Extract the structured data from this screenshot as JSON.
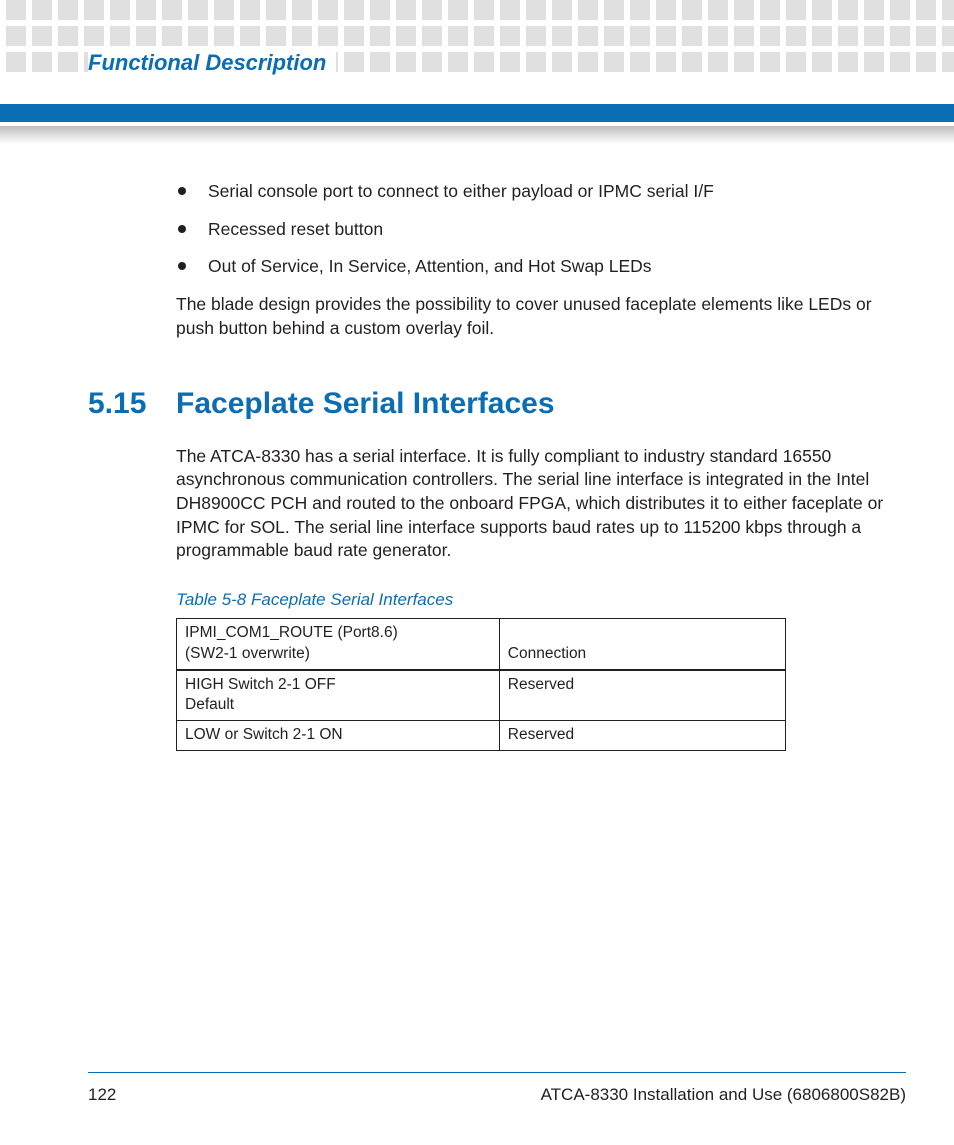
{
  "colors": {
    "brand_blue": "#0a6eb4",
    "dot_grey": "#e0e0e0",
    "text": "#231f20",
    "grey_bar_top": "#bdbdbd",
    "page_bg": "#ffffff"
  },
  "header": {
    "running_title": "Functional Description"
  },
  "bullets": [
    "Serial console port to connect to either payload or IPMC serial I/F",
    "Recessed reset button",
    "Out of Service, In Service, Attention, and Hot Swap LEDs"
  ],
  "paragraph_after_bullets": "The blade design provides the possibility to cover unused faceplate elements like LEDs or push button behind a custom overlay foil.",
  "section": {
    "number": "5.15",
    "title": "Faceplate Serial Interfaces",
    "body": "The ATCA-8330 has a serial interface. It is fully compliant to industry standard 16550 asynchronous communication controllers. The serial line interface is integrated in the Intel DH8900CC PCH and routed to the onboard FPGA, which distributes it to either faceplate or IPMC for SOL. The serial line interface supports baud rates up to 115200 kbps through a programmable baud rate generator."
  },
  "table": {
    "caption": "Table 5-8 Faceplate Serial Interfaces",
    "column_widths_pct": [
      53,
      47
    ],
    "border_color": "#231f20",
    "header_row": {
      "c0_line1": "IPMI_COM1_ROUTE (Port8.6)",
      "c0_line2": " (SW2-1 overwrite)",
      "c1": "Connection"
    },
    "rows": [
      {
        "c0_line1": "HIGH Switch 2-1 OFF",
        "c0_line2": "Default",
        "c1": "Reserved"
      },
      {
        "c0_line1": "LOW or Switch 2-1 ON",
        "c0_line2": "",
        "c1": "Reserved"
      }
    ]
  },
  "footer": {
    "page_number": "122",
    "doc_title": "ATCA-8330 Installation and Use (6806800S82B)"
  }
}
